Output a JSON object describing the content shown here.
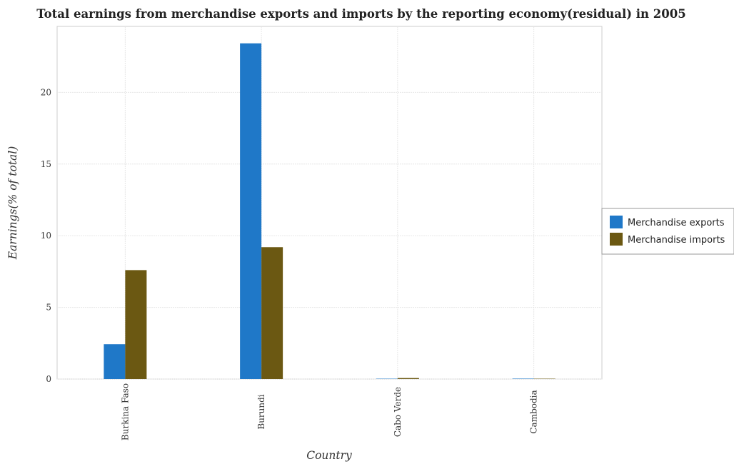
{
  "chart_data": {
    "type": "bar",
    "title": "Total earnings from merchandise exports and imports by the reporting economy(residual) in 2005",
    "xlabel": "Country",
    "ylabel": "Earnings(% of total)",
    "categories": [
      "Burkina Faso",
      "Burundi",
      "Cabo Verde",
      "Cambodia"
    ],
    "series": [
      {
        "name": "Merchandise exports",
        "color": "#1f78c8",
        "values": [
          2.43,
          23.42,
          0.01,
          0.03
        ]
      },
      {
        "name": "Merchandise imports",
        "color": "#6b5812",
        "values": [
          7.6,
          9.2,
          0.07,
          0.01
        ]
      }
    ],
    "ylim": [
      0,
      24.6
    ],
    "yticks": [
      0,
      5,
      10,
      15,
      20
    ],
    "grid": true,
    "legend_position": "right"
  }
}
